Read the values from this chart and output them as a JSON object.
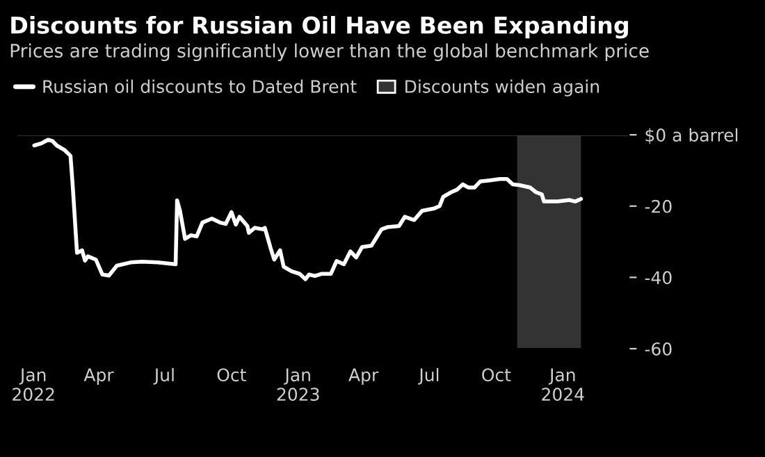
{
  "chart_data": {
    "type": "line",
    "title": "Discounts for Russian Oil Have Been Expanding",
    "subtitle": "Prices are trading significantly lower than the global benchmark price",
    "x": [
      "2022-01-02",
      "2022-01-12",
      "2022-01-21",
      "2022-01-27",
      "2022-02-02",
      "2022-02-13",
      "2022-02-21",
      "2022-02-24",
      "2022-03-02",
      "2022-03-09",
      "2022-03-13",
      "2022-03-17",
      "2022-03-28",
      "2022-04-06",
      "2022-04-15",
      "2022-04-26",
      "2022-05-15",
      "2022-05-31",
      "2022-06-21",
      "2022-07-16",
      "2022-07-18",
      "2022-07-22",
      "2022-07-29",
      "2022-08-06",
      "2022-08-14",
      "2022-08-22",
      "2022-09-04",
      "2022-09-15",
      "2022-09-23",
      "2022-10-01",
      "2022-10-07",
      "2022-10-12",
      "2022-10-23",
      "2022-10-25",
      "2022-11-02",
      "2022-11-13",
      "2022-11-16",
      "2022-11-24",
      "2022-11-29",
      "2022-12-07",
      "2022-12-12",
      "2022-12-23",
      "2023-01-03",
      "2023-01-11",
      "2023-01-16",
      "2023-01-24",
      "2023-02-02",
      "2023-02-15",
      "2023-02-23",
      "2023-03-05",
      "2023-03-14",
      "2023-03-22",
      "2023-03-30",
      "2023-04-12",
      "2023-04-26",
      "2023-05-04",
      "2023-05-20",
      "2023-05-28",
      "2023-06-10",
      "2023-06-21",
      "2023-07-07",
      "2023-07-15",
      "2023-07-20",
      "2023-07-31",
      "2023-08-08",
      "2023-08-16",
      "2023-08-24",
      "2023-09-01",
      "2023-09-09",
      "2023-09-22",
      "2023-10-06",
      "2023-10-16",
      "2023-10-24",
      "2023-11-02",
      "2023-11-17",
      "2023-11-25",
      "2023-12-03",
      "2023-12-06",
      "2023-12-25",
      "2024-01-10",
      "2024-01-18",
      "2024-01-26"
    ],
    "series": [
      {
        "name": "Russian oil discounts to Dated Brent",
        "color": "#ffffff",
        "values": [
          -3.0,
          -2.4,
          -1.4,
          -1.7,
          -3.0,
          -4.3,
          -5.9,
          -14.1,
          -33.1,
          -32.4,
          -35.3,
          -34.1,
          -35.0,
          -39.2,
          -39.5,
          -36.7,
          -35.8,
          -35.6,
          -35.8,
          -36.3,
          -18.4,
          -21.3,
          -29.2,
          -28.2,
          -28.5,
          -24.6,
          -23.5,
          -24.6,
          -25.0,
          -21.7,
          -25.2,
          -23.0,
          -25.6,
          -27.5,
          -26.1,
          -26.5,
          -26.1,
          -31.8,
          -35.0,
          -32.4,
          -37.0,
          -38.3,
          -39.0,
          -40.5,
          -39.2,
          -39.6,
          -39.0,
          -39.0,
          -35.4,
          -36.3,
          -32.7,
          -34.4,
          -31.5,
          -31.1,
          -26.5,
          -25.9,
          -25.6,
          -23.0,
          -23.9,
          -21.3,
          -20.7,
          -20.0,
          -17.4,
          -16.1,
          -15.4,
          -13.9,
          -14.8,
          -14.8,
          -13.1,
          -12.8,
          -12.4,
          -12.4,
          -13.9,
          -14.1,
          -14.8,
          -16.1,
          -16.7,
          -18.7,
          -18.7,
          -18.3,
          -18.7,
          -18.0
        ]
      }
    ],
    "bands": [
      {
        "axis": "x",
        "from": "2023-10-30",
        "to": "2024-01-26",
        "label": "Discounts widen again",
        "color": "#333333"
      }
    ],
    "ref_lines": [
      {
        "axis": "y",
        "value": 0,
        "color": "#888888",
        "line_style": "solid"
      }
    ],
    "xlim": [
      "2021-12-09",
      "2024-04-01"
    ],
    "xticks": [
      {
        "value": "2022-01",
        "label": "Jan\n2022"
      },
      {
        "value": "2022-04",
        "label": "Apr"
      },
      {
        "value": "2022-07",
        "label": "Jul"
      },
      {
        "value": "2022-10",
        "label": "Oct"
      },
      {
        "value": "2023-01",
        "label": "Jan\n2023"
      },
      {
        "value": "2023-04",
        "label": "Apr"
      },
      {
        "value": "2023-07",
        "label": "Jul"
      },
      {
        "value": "2023-10",
        "label": "Oct"
      },
      {
        "value": "2024-01",
        "label": "Jan\n2024"
      }
    ],
    "ylim": [
      -60,
      0
    ],
    "yticks": [
      {
        "value": 0,
        "label": "$0 a barrel"
      },
      -20,
      -40,
      -60
    ],
    "grid": false,
    "legend": "top left",
    "line_style": "solid",
    "marker": "none"
  }
}
